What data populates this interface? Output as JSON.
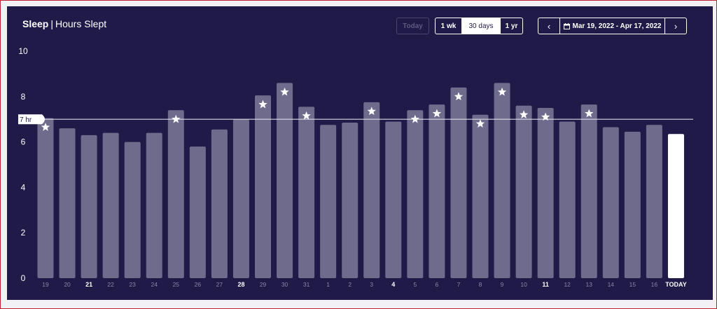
{
  "header": {
    "title_main": "Sleep",
    "title_separator": "|",
    "title_sub": "Hours Slept"
  },
  "controls": {
    "today_label": "Today",
    "ranges": [
      "1 wk",
      "30 days",
      "1 yr"
    ],
    "active_range": "30 days",
    "date_range": "Mar 19, 2022 - Apr 17, 2022",
    "prev_icon": "chevron-left-icon",
    "next_icon": "chevron-right-icon",
    "calendar_icon": "calendar-icon"
  },
  "chart_data": {
    "type": "bar",
    "ylim": [
      0,
      10
    ],
    "yticks": [
      0,
      2,
      4,
      6,
      8,
      10
    ],
    "goal": {
      "value": 7,
      "label": "7 hr"
    },
    "categories": [
      "19",
      "20",
      "21",
      "22",
      "23",
      "24",
      "25",
      "26",
      "27",
      "28",
      "29",
      "30",
      "31",
      "1",
      "2",
      "3",
      "4",
      "5",
      "6",
      "7",
      "8",
      "9",
      "10",
      "11",
      "12",
      "13",
      "14",
      "15",
      "16",
      "TODAY"
    ],
    "bold_categories": [
      "21",
      "28",
      "4",
      "11",
      "TODAY"
    ],
    "values": [
      7.05,
      6.6,
      6.3,
      6.4,
      6.0,
      6.4,
      7.4,
      5.8,
      6.55,
      7.0,
      8.05,
      8.6,
      7.55,
      6.75,
      6.85,
      7.75,
      6.9,
      7.4,
      7.65,
      8.4,
      7.2,
      8.6,
      7.6,
      7.5,
      6.9,
      7.65,
      6.65,
      6.45,
      6.75,
      6.35
    ],
    "starred": [
      true,
      false,
      false,
      false,
      false,
      false,
      true,
      false,
      false,
      false,
      true,
      true,
      true,
      false,
      false,
      true,
      false,
      true,
      true,
      true,
      true,
      true,
      true,
      true,
      false,
      true,
      false,
      false,
      false,
      false
    ],
    "colors": {
      "bar": "#6f6b8d",
      "today_bar": "#ffffff",
      "goal_line": "#d9d8e4",
      "star": "#ffffff"
    }
  }
}
